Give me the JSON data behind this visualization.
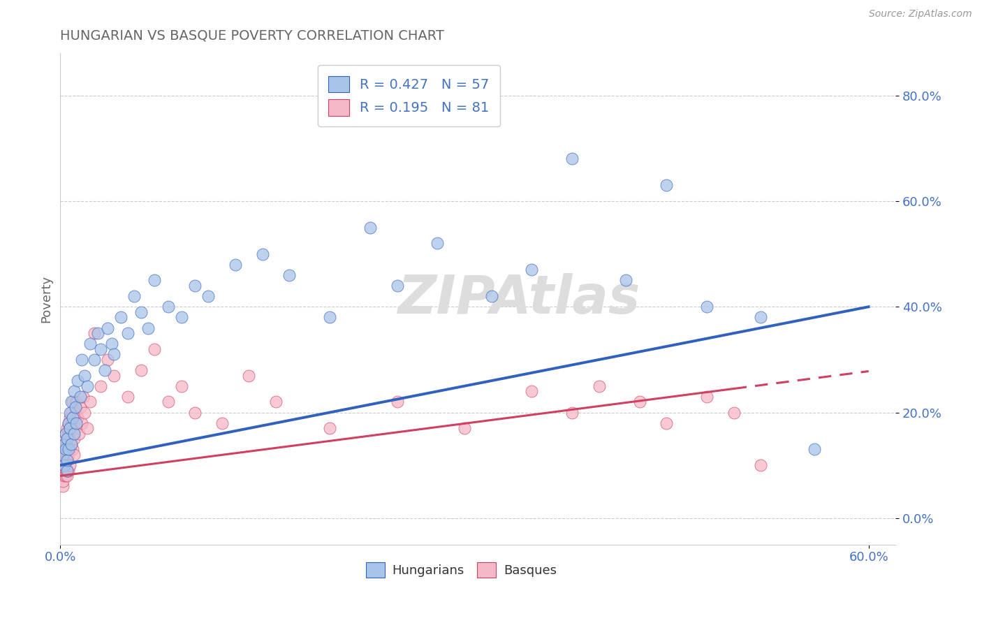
{
  "title": "HUNGARIAN VS BASQUE POVERTY CORRELATION CHART",
  "source": "Source: ZipAtlas.com",
  "xlim": [
    0.0,
    0.62
  ],
  "ylim": [
    -0.05,
    0.88
  ],
  "hungarian_R": 0.427,
  "hungarian_N": 57,
  "basque_R": 0.195,
  "basque_N": 81,
  "hungarian_color": "#a8c4e8",
  "basque_color": "#f5b8c8",
  "hungarian_line_color": "#3060c0",
  "basque_line_color": "#d04060",
  "hungarian_x": [
    0.002,
    0.003,
    0.003,
    0.004,
    0.004,
    0.005,
    0.005,
    0.005,
    0.006,
    0.006,
    0.007,
    0.007,
    0.008,
    0.008,
    0.009,
    0.01,
    0.01,
    0.011,
    0.012,
    0.013,
    0.015,
    0.016,
    0.018,
    0.02,
    0.022,
    0.025,
    0.028,
    0.03,
    0.033,
    0.035,
    0.038,
    0.04,
    0.045,
    0.05,
    0.055,
    0.06,
    0.065,
    0.07,
    0.08,
    0.09,
    0.1,
    0.11,
    0.13,
    0.15,
    0.17,
    0.2,
    0.23,
    0.25,
    0.28,
    0.32,
    0.35,
    0.38,
    0.42,
    0.45,
    0.48,
    0.52,
    0.56
  ],
  "hungarian_y": [
    0.12,
    0.14,
    0.1,
    0.16,
    0.13,
    0.15,
    0.09,
    0.11,
    0.18,
    0.13,
    0.2,
    0.17,
    0.14,
    0.22,
    0.19,
    0.16,
    0.24,
    0.21,
    0.18,
    0.26,
    0.23,
    0.3,
    0.27,
    0.25,
    0.33,
    0.3,
    0.35,
    0.32,
    0.28,
    0.36,
    0.33,
    0.31,
    0.38,
    0.35,
    0.42,
    0.39,
    0.36,
    0.45,
    0.4,
    0.38,
    0.44,
    0.42,
    0.48,
    0.5,
    0.46,
    0.38,
    0.55,
    0.44,
    0.52,
    0.42,
    0.47,
    0.68,
    0.45,
    0.63,
    0.4,
    0.38,
    0.13
  ],
  "basque_x": [
    0.001,
    0.001,
    0.002,
    0.002,
    0.002,
    0.002,
    0.003,
    0.003,
    0.003,
    0.003,
    0.003,
    0.004,
    0.004,
    0.004,
    0.004,
    0.004,
    0.004,
    0.004,
    0.005,
    0.005,
    0.005,
    0.005,
    0.005,
    0.005,
    0.005,
    0.006,
    0.006,
    0.006,
    0.006,
    0.006,
    0.007,
    0.007,
    0.007,
    0.007,
    0.007,
    0.007,
    0.008,
    0.008,
    0.008,
    0.009,
    0.009,
    0.009,
    0.009,
    0.01,
    0.01,
    0.01,
    0.011,
    0.011,
    0.012,
    0.013,
    0.014,
    0.015,
    0.016,
    0.017,
    0.018,
    0.02,
    0.022,
    0.025,
    0.03,
    0.035,
    0.04,
    0.05,
    0.06,
    0.07,
    0.08,
    0.09,
    0.1,
    0.12,
    0.14,
    0.16,
    0.2,
    0.25,
    0.3,
    0.35,
    0.38,
    0.4,
    0.43,
    0.45,
    0.48,
    0.5,
    0.52
  ],
  "basque_y": [
    0.08,
    0.1,
    0.06,
    0.12,
    0.09,
    0.07,
    0.14,
    0.11,
    0.08,
    0.13,
    0.1,
    0.16,
    0.12,
    0.09,
    0.14,
    0.11,
    0.08,
    0.13,
    0.17,
    0.14,
    0.11,
    0.08,
    0.15,
    0.12,
    0.09,
    0.18,
    0.15,
    0.12,
    0.09,
    0.16,
    0.19,
    0.16,
    0.13,
    0.1,
    0.17,
    0.14,
    0.2,
    0.17,
    0.14,
    0.22,
    0.19,
    0.16,
    0.13,
    0.18,
    0.15,
    0.12,
    0.2,
    0.17,
    0.22,
    0.19,
    0.16,
    0.21,
    0.18,
    0.23,
    0.2,
    0.17,
    0.22,
    0.35,
    0.25,
    0.3,
    0.27,
    0.23,
    0.28,
    0.32,
    0.22,
    0.25,
    0.2,
    0.18,
    0.27,
    0.22,
    0.17,
    0.22,
    0.17,
    0.24,
    0.2,
    0.25,
    0.22,
    0.18,
    0.23,
    0.2,
    0.1
  ],
  "title_color": "#666666",
  "tick_color": "#4472c4",
  "grid_color": "#cccccc",
  "legend_text_color": "#4472c4",
  "watermark_color": "#dddddd",
  "watermark_font": 55
}
